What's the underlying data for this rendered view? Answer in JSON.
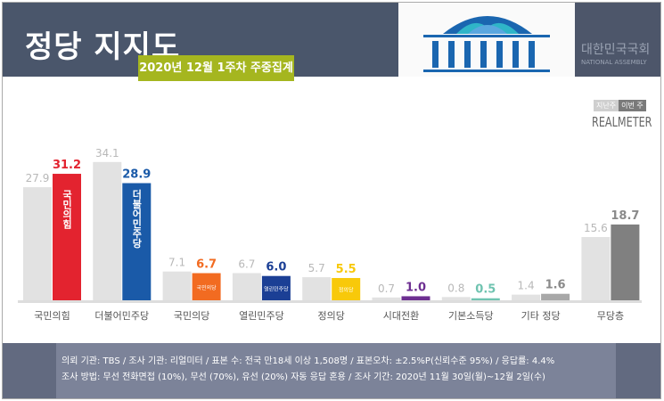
{
  "header": {
    "title": "정당 지지도",
    "subtitle": "2020년 12월 1주차 주중집계",
    "assembly_kr": "대한민국국회",
    "assembly_en": "NATIONAL ASSEMBLY"
  },
  "legend": {
    "prev": "지난주",
    "curr": "이번 주",
    "brand": "REALMETER"
  },
  "chart_data": {
    "type": "bar",
    "categories": [
      "국민의힘",
      "더불어민주당",
      "국민의당",
      "열린민주당",
      "정의당",
      "시대전환",
      "기본소득당",
      "기타 정당",
      "무당층"
    ],
    "series": [
      {
        "name": "지난주",
        "values": [
          27.9,
          34.1,
          7.1,
          6.7,
          5.7,
          0.7,
          0.8,
          1.4,
          15.6
        ]
      },
      {
        "name": "이번 주",
        "values": [
          31.2,
          28.9,
          6.7,
          6.0,
          5.5,
          1.0,
          0.5,
          1.6,
          18.7
        ]
      }
    ],
    "colors": {
      "prev": "#e2e2e2",
      "curr": [
        "#e3232f",
        "#1a5aa8",
        "#f26b21",
        "#1b3f95",
        "#f8c90a",
        "#6d2f91",
        "#6fc3b0",
        "#a8a8a8",
        "#808080"
      ]
    },
    "label_colors": {
      "prev": "#b8b8b8",
      "curr": [
        "#e3232f",
        "#1a5aa8",
        "#f26b21",
        "#1b3f95",
        "#f8c90a",
        "#6d2f91",
        "#6fc3b0",
        "#8a8a8a",
        "#8a8a8a"
      ]
    },
    "bar_logos": [
      "국민의힘",
      "더불어민주당",
      "국민의당",
      "열린민주당",
      "정의당"
    ],
    "grid": false
  },
  "footer": {
    "line1": "의뢰 기관: TBS / 조사 기관: 리얼미터 / 표본 수: 전국 만18세 이상 1,508명 / 표본오차: ±2.5%P(신뢰수준 95%) / 응답률: 4.4%",
    "line2": "조사 방법: 무선 전화면접 (10%), 무선 (70%), 유선 (20%) 자동 응답 혼용 / 조사 기간: 2020년 11월 30일(월)~12월 2일(수)"
  }
}
